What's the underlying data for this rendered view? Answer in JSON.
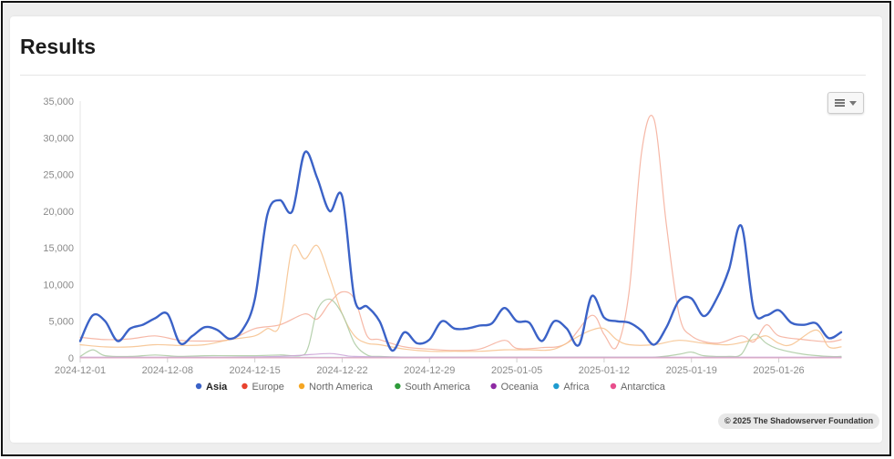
{
  "page": {
    "title": "Results",
    "credit": "© 2025 The Shadowserver Foundation",
    "menu_icon": "menu-icon"
  },
  "colors": {
    "Asia": "#3b62c7",
    "Europe": "#f5ab98",
    "North America": "#f6c08a",
    "South America": "#a9c9a0",
    "Oceania": "#c9a0d6",
    "Africa": "#9cc3d9",
    "Antarctica": "#eea2c0"
  },
  "legend_dot_colors": {
    "Asia": "#3b62c7",
    "Europe": "#e8432e",
    "North America": "#f5a623",
    "South America": "#2e9b3a",
    "Oceania": "#8e2aa3",
    "Africa": "#1e9bcf",
    "Antarctica": "#e84f8c"
  },
  "chart_data": {
    "type": "line",
    "x_start": "2024-12-01",
    "x_end": "2025-01-30",
    "x_ticks": [
      "2024-12-01",
      "2024-12-08",
      "2024-12-15",
      "2024-12-22",
      "2024-12-29",
      "2025-01-05",
      "2025-01-12",
      "2025-01-19",
      "2025-01-26"
    ],
    "y_ticks": [
      "0",
      "5,000",
      "10,000",
      "15,000",
      "20,000",
      "25,000",
      "30,000",
      "35,000"
    ],
    "ylim": [
      0,
      35000
    ],
    "grid": false,
    "legend_position": "bottom",
    "series": [
      {
        "name": "Asia",
        "values": [
          [
            0,
            2300
          ],
          [
            1,
            5800
          ],
          [
            2,
            5000
          ],
          [
            3,
            2300
          ],
          [
            4,
            4000
          ],
          [
            5,
            4500
          ],
          [
            6,
            5400
          ],
          [
            7,
            6000
          ],
          [
            8,
            2000
          ],
          [
            9,
            3000
          ],
          [
            10,
            4200
          ],
          [
            11,
            3800
          ],
          [
            12,
            2600
          ],
          [
            13,
            3800
          ],
          [
            14,
            8000
          ],
          [
            15,
            19500
          ],
          [
            16,
            21500
          ],
          [
            17,
            20000
          ],
          [
            18,
            28000
          ],
          [
            19,
            24500
          ],
          [
            20,
            20000
          ],
          [
            21,
            22000
          ],
          [
            22,
            8000
          ],
          [
            23,
            7000
          ],
          [
            24,
            5000
          ],
          [
            25,
            1000
          ],
          [
            26,
            3500
          ],
          [
            27,
            2000
          ],
          [
            28,
            2500
          ],
          [
            29,
            5000
          ],
          [
            30,
            4000
          ],
          [
            31,
            4000
          ],
          [
            32,
            4400
          ],
          [
            33,
            4700
          ],
          [
            34,
            6800
          ],
          [
            35,
            5000
          ],
          [
            36,
            4800
          ],
          [
            37,
            2300
          ],
          [
            38,
            5000
          ],
          [
            39,
            4000
          ],
          [
            40,
            1800
          ],
          [
            41,
            8400
          ],
          [
            42,
            5500
          ],
          [
            43,
            5000
          ],
          [
            44,
            4800
          ],
          [
            45,
            3700
          ],
          [
            46,
            1800
          ],
          [
            47,
            4200
          ],
          [
            48,
            7800
          ],
          [
            49,
            8100
          ],
          [
            50,
            5700
          ],
          [
            51,
            8000
          ],
          [
            52,
            12000
          ],
          [
            53,
            18000
          ],
          [
            54,
            6500
          ],
          [
            55,
            5800
          ],
          [
            56,
            6500
          ],
          [
            57,
            4800
          ],
          [
            58,
            4500
          ],
          [
            59,
            4700
          ],
          [
            60,
            2700
          ],
          [
            61,
            3500
          ]
        ]
      },
      {
        "name": "Europe",
        "values": [
          [
            0,
            2800
          ],
          [
            2,
            2500
          ],
          [
            4,
            2600
          ],
          [
            6,
            3000
          ],
          [
            8,
            2400
          ],
          [
            10,
            2300
          ],
          [
            12,
            2500
          ],
          [
            14,
            4000
          ],
          [
            16,
            4500
          ],
          [
            18,
            6000
          ],
          [
            19,
            5300
          ],
          [
            20,
            7500
          ],
          [
            21,
            9000
          ],
          [
            22,
            8000
          ],
          [
            23,
            3000
          ],
          [
            24,
            2500
          ],
          [
            26,
            1500
          ],
          [
            28,
            1200
          ],
          [
            30,
            1000
          ],
          [
            32,
            1200
          ],
          [
            34,
            2400
          ],
          [
            35,
            1300
          ],
          [
            37,
            1400
          ],
          [
            39,
            2000
          ],
          [
            41,
            5800
          ],
          [
            42,
            3200
          ],
          [
            43,
            1500
          ],
          [
            44,
            9000
          ],
          [
            45,
            28000
          ],
          [
            46,
            32500
          ],
          [
            47,
            18000
          ],
          [
            48,
            6000
          ],
          [
            49,
            3000
          ],
          [
            51,
            2000
          ],
          [
            53,
            3000
          ],
          [
            54,
            2200
          ],
          [
            55,
            4500
          ],
          [
            56,
            3000
          ],
          [
            58,
            2500
          ],
          [
            60,
            2200
          ],
          [
            61,
            2500
          ]
        ]
      },
      {
        "name": "North America",
        "values": [
          [
            0,
            1800
          ],
          [
            2,
            1500
          ],
          [
            4,
            1500
          ],
          [
            6,
            1800
          ],
          [
            8,
            1700
          ],
          [
            10,
            1800
          ],
          [
            12,
            2500
          ],
          [
            14,
            3000
          ],
          [
            15,
            4000
          ],
          [
            16,
            4500
          ],
          [
            17,
            15000
          ],
          [
            18,
            13500
          ],
          [
            19,
            15300
          ],
          [
            20,
            11000
          ],
          [
            21,
            6000
          ],
          [
            22,
            3000
          ],
          [
            23,
            2000
          ],
          [
            24,
            1800
          ],
          [
            26,
            1200
          ],
          [
            28,
            900
          ],
          [
            30,
            900
          ],
          [
            32,
            900
          ],
          [
            34,
            1100
          ],
          [
            36,
            1100
          ],
          [
            38,
            1200
          ],
          [
            40,
            3000
          ],
          [
            41,
            3800
          ],
          [
            42,
            4000
          ],
          [
            43,
            2500
          ],
          [
            44,
            1800
          ],
          [
            46,
            1800
          ],
          [
            48,
            2400
          ],
          [
            50,
            2000
          ],
          [
            52,
            1800
          ],
          [
            54,
            2500
          ],
          [
            55,
            3000
          ],
          [
            56,
            2000
          ],
          [
            57,
            1800
          ],
          [
            59,
            3800
          ],
          [
            60,
            1500
          ],
          [
            61,
            1500
          ]
        ]
      },
      {
        "name": "South America",
        "values": [
          [
            0,
            200
          ],
          [
            1,
            1100
          ],
          [
            2,
            300
          ],
          [
            4,
            200
          ],
          [
            6,
            400
          ],
          [
            8,
            200
          ],
          [
            10,
            300
          ],
          [
            12,
            300
          ],
          [
            14,
            300
          ],
          [
            16,
            400
          ],
          [
            18,
            500
          ],
          [
            19,
            6500
          ],
          [
            20,
            8000
          ],
          [
            21,
            6000
          ],
          [
            22,
            2000
          ],
          [
            23,
            400
          ],
          [
            24,
            200
          ],
          [
            26,
            100
          ],
          [
            28,
            100
          ],
          [
            30,
            100
          ],
          [
            34,
            100
          ],
          [
            38,
            100
          ],
          [
            42,
            100
          ],
          [
            46,
            100
          ],
          [
            48,
            500
          ],
          [
            49,
            800
          ],
          [
            50,
            300
          ],
          [
            52,
            200
          ],
          [
            53,
            500
          ],
          [
            54,
            3200
          ],
          [
            55,
            2000
          ],
          [
            56,
            1200
          ],
          [
            58,
            500
          ],
          [
            60,
            200
          ],
          [
            61,
            200
          ]
        ]
      },
      {
        "name": "Oceania",
        "values": [
          [
            0,
            100
          ],
          [
            4,
            100
          ],
          [
            8,
            100
          ],
          [
            12,
            100
          ],
          [
            16,
            200
          ],
          [
            18,
            400
          ],
          [
            20,
            600
          ],
          [
            21,
            400
          ],
          [
            22,
            200
          ],
          [
            26,
            100
          ],
          [
            30,
            100
          ],
          [
            34,
            100
          ],
          [
            40,
            100
          ],
          [
            46,
            100
          ],
          [
            52,
            100
          ],
          [
            56,
            100
          ],
          [
            61,
            100
          ]
        ]
      },
      {
        "name": "Africa",
        "values": [
          [
            0,
            50
          ],
          [
            10,
            50
          ],
          [
            20,
            80
          ],
          [
            30,
            50
          ],
          [
            40,
            50
          ],
          [
            50,
            50
          ],
          [
            61,
            50
          ]
        ]
      },
      {
        "name": "Antarctica",
        "values": [
          [
            0,
            10
          ],
          [
            30,
            10
          ],
          [
            61,
            10
          ]
        ]
      }
    ]
  }
}
